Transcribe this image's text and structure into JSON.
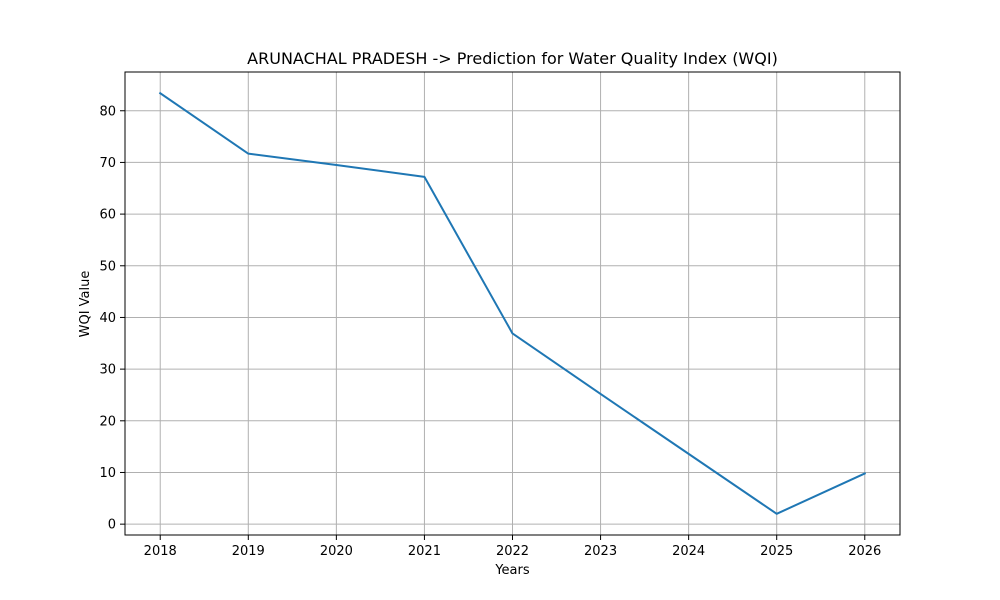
{
  "chart_data": {
    "type": "line",
    "title": "ARUNACHAL PRADESH -> Prediction for Water Quality Index (WQI)",
    "xlabel": "Years",
    "ylabel": "WQI Value",
    "x": [
      2018,
      2019,
      2020,
      2021,
      2022,
      2023,
      2024,
      2025,
      2026
    ],
    "series": [
      {
        "values": [
          83.4,
          71.7,
          69.5,
          67.2,
          36.9,
          25.2,
          13.6,
          2.0,
          9.8
        ]
      }
    ],
    "xticks": [
      "2018",
      "2019",
      "2020",
      "2021",
      "2022",
      "2023",
      "2024",
      "2025",
      "2026"
    ],
    "yticks": [
      "0",
      "10",
      "20",
      "30",
      "40",
      "50",
      "60",
      "70",
      "80"
    ],
    "xlim": [
      2017.6,
      2026.4
    ],
    "ylim": [
      -2.1,
      87.5
    ],
    "grid": true,
    "line_color": "#1f77b4"
  }
}
